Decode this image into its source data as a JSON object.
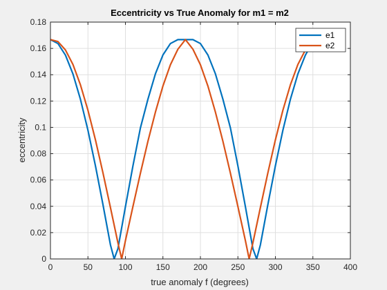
{
  "chart_data": {
    "type": "line",
    "title": "Eccentricity vs True Anomaly for m1 = m2",
    "xlabel": "true anomaly f (degrees)",
    "ylabel": "eccentricity",
    "xlim": [
      0,
      400
    ],
    "ylim": [
      0,
      0.18
    ],
    "xticks": [
      0,
      50,
      100,
      150,
      200,
      250,
      300,
      350,
      400
    ],
    "yticks": [
      0,
      0.02,
      0.04,
      0.06,
      0.08,
      0.1,
      0.12,
      0.14,
      0.16,
      0.18
    ],
    "xtick_labels": [
      "0",
      "50",
      "100",
      "150",
      "200",
      "250",
      "300",
      "350",
      "400"
    ],
    "ytick_labels": [
      "0",
      "0.02",
      "0.04",
      "0.06",
      "0.08",
      "0.1",
      "0.12",
      "0.14",
      "0.16",
      "0.18"
    ],
    "grid": true,
    "legend_position": "top-right",
    "series": [
      {
        "name": "e1",
        "color": "#0072BD",
        "x": [
          0,
          10,
          20,
          30,
          40,
          50,
          60,
          70,
          80,
          85,
          90,
          100,
          110,
          120,
          130,
          140,
          150,
          160,
          170,
          180,
          190,
          200,
          210,
          220,
          230,
          240,
          250,
          260,
          270,
          275,
          280,
          290,
          300,
          310,
          320,
          330,
          340,
          345
        ],
        "y": [
          0.1667,
          0.1637,
          0.1549,
          0.1406,
          0.1213,
          0.0978,
          0.0708,
          0.0414,
          0.0107,
          0,
          0.0078,
          0.0397,
          0.0707,
          0.0996,
          0.1214,
          0.1407,
          0.155,
          0.1637,
          0.1667,
          0.1667,
          0.1667,
          0.1637,
          0.155,
          0.1407,
          0.1214,
          0.0996,
          0.0707,
          0.0397,
          0.0078,
          0,
          0.0107,
          0.0414,
          0.0708,
          0.0978,
          0.1213,
          0.1406,
          0.1549,
          0.16
        ]
      },
      {
        "name": "e2",
        "color": "#D95319",
        "x": [
          0,
          10,
          20,
          30,
          40,
          50,
          60,
          70,
          80,
          90,
          95,
          100,
          110,
          120,
          130,
          140,
          150,
          160,
          170,
          180,
          190,
          200,
          210,
          220,
          230,
          240,
          250,
          260,
          265,
          270,
          280,
          290,
          300,
          310,
          320,
          330,
          340,
          345
        ],
        "y": [
          0.1667,
          0.1652,
          0.1588,
          0.1478,
          0.1323,
          0.113,
          0.0905,
          0.0655,
          0.0391,
          0.0122,
          0,
          0.0139,
          0.0398,
          0.0652,
          0.0894,
          0.1116,
          0.1314,
          0.1476,
          0.1594,
          0.1667,
          0.1594,
          0.1476,
          0.1314,
          0.1116,
          0.0894,
          0.0652,
          0.0398,
          0.0139,
          0,
          0.0122,
          0.0391,
          0.0655,
          0.0905,
          0.113,
          0.1323,
          0.1478,
          0.1588,
          0.162
        ]
      }
    ]
  }
}
